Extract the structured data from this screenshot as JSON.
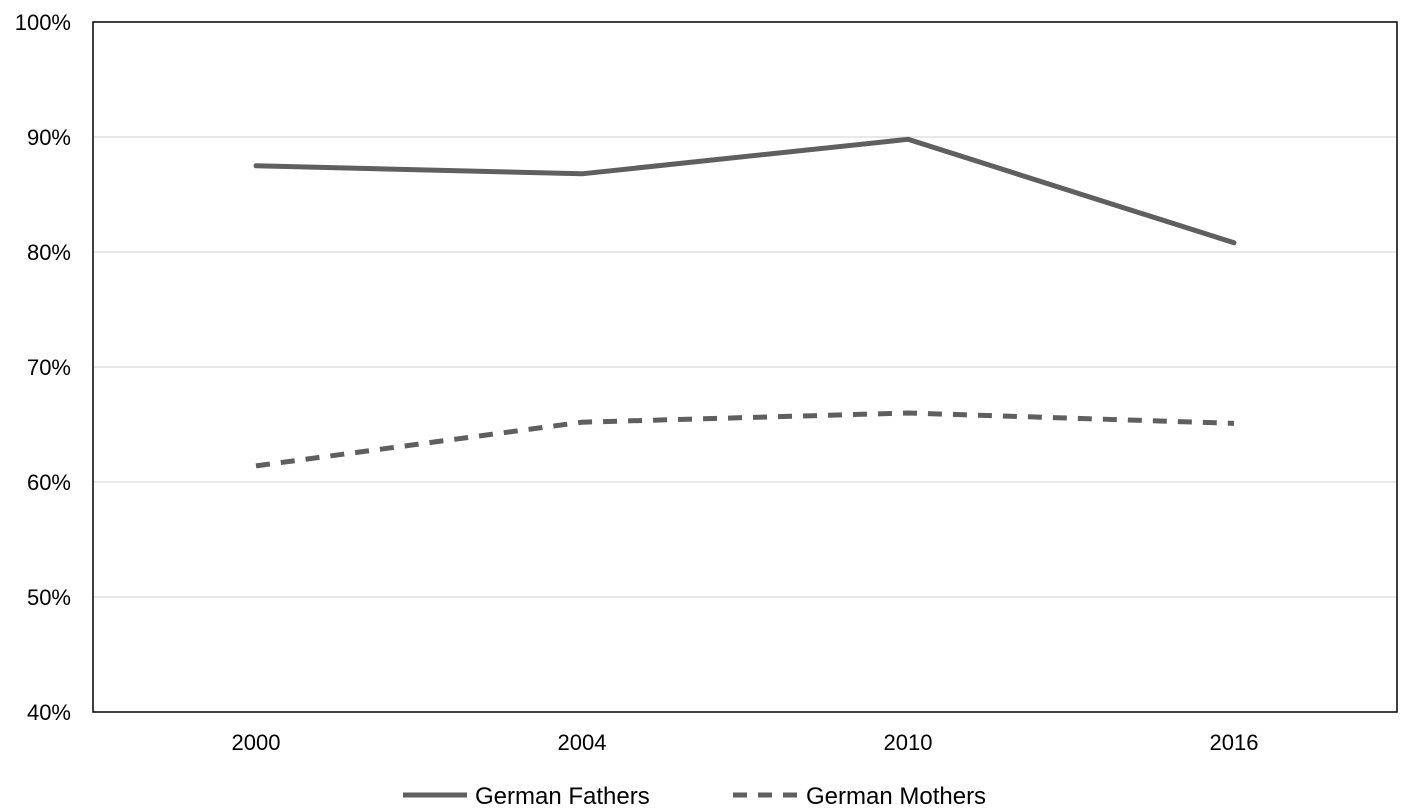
{
  "chart_data": {
    "type": "line",
    "title": "",
    "xlabel": "",
    "ylabel": "",
    "categories": [
      "2000",
      "2004",
      "2010",
      "2016"
    ],
    "ylim": [
      0.4,
      1.0
    ],
    "yticks": [
      {
        "value": 0.4,
        "label": "40%"
      },
      {
        "value": 0.5,
        "label": "50%"
      },
      {
        "value": 0.6,
        "label": "60%"
      },
      {
        "value": 0.7,
        "label": "70%"
      },
      {
        "value": 0.8,
        "label": "80%"
      },
      {
        "value": 0.9,
        "label": "90%"
      },
      {
        "value": 1.0,
        "label": "100%"
      }
    ],
    "grid": true,
    "legend_position": "bottom",
    "series": [
      {
        "name": "German Fathers",
        "style": "solid",
        "color": "#5f5f5f",
        "values": [
          0.875,
          0.868,
          0.898,
          0.808
        ]
      },
      {
        "name": "German Mothers",
        "style": "dashed",
        "color": "#5f5f5f",
        "values": [
          0.614,
          0.652,
          0.66,
          0.651
        ]
      }
    ]
  }
}
